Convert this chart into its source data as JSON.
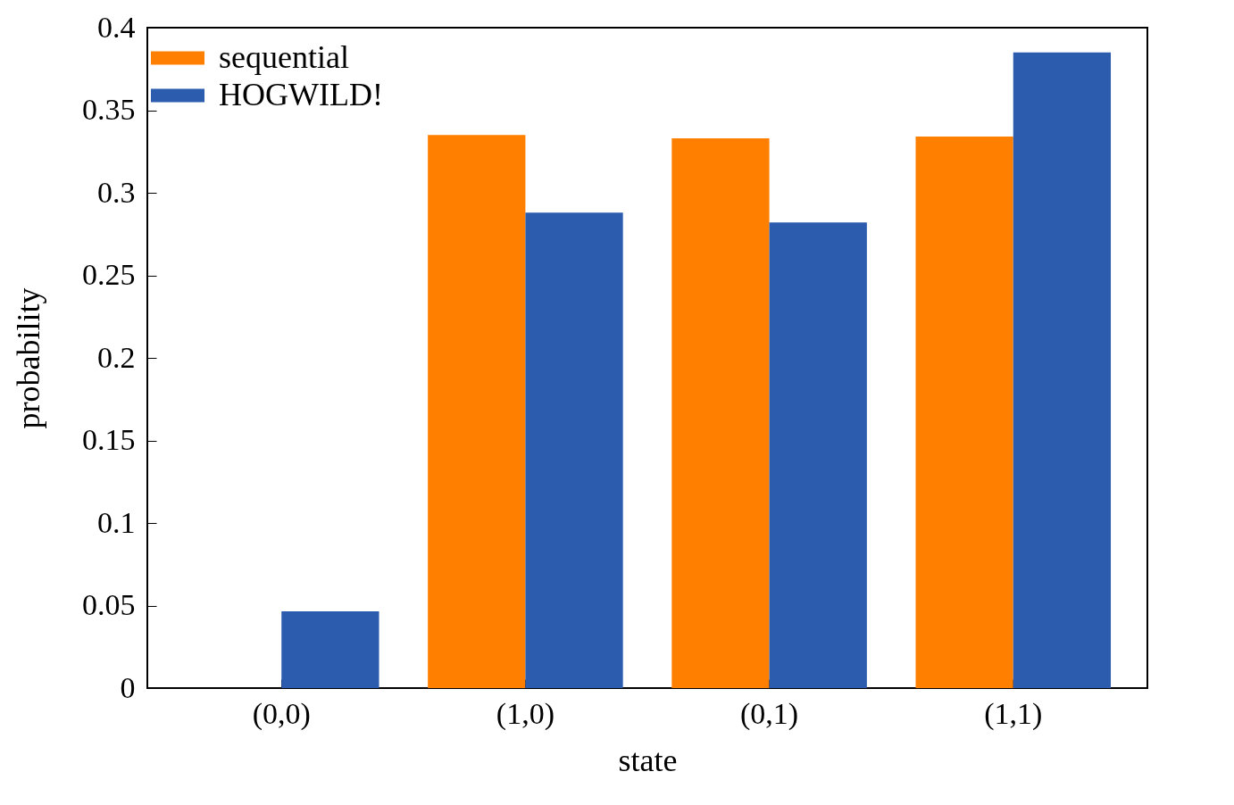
{
  "chart_data": {
    "type": "bar",
    "xlabel": "state",
    "ylabel": "probability",
    "categories": [
      "(0,0)",
      "(1,0)",
      "(0,1)",
      "(1,1)"
    ],
    "series": [
      {
        "name": "sequential",
        "color": "#ff8000",
        "values": [
          0,
          0.335,
          0.333,
          0.334
        ]
      },
      {
        "name": "HOGWILD!",
        "color": "#2b5cae",
        "values": [
          0.0465,
          0.288,
          0.282,
          0.385
        ]
      }
    ],
    "ylim": [
      0,
      0.4
    ],
    "yticks": [
      0,
      0.05,
      0.1,
      0.15,
      0.2,
      0.25,
      0.3,
      0.35,
      0.4
    ],
    "grid": false,
    "legend": "top left"
  }
}
